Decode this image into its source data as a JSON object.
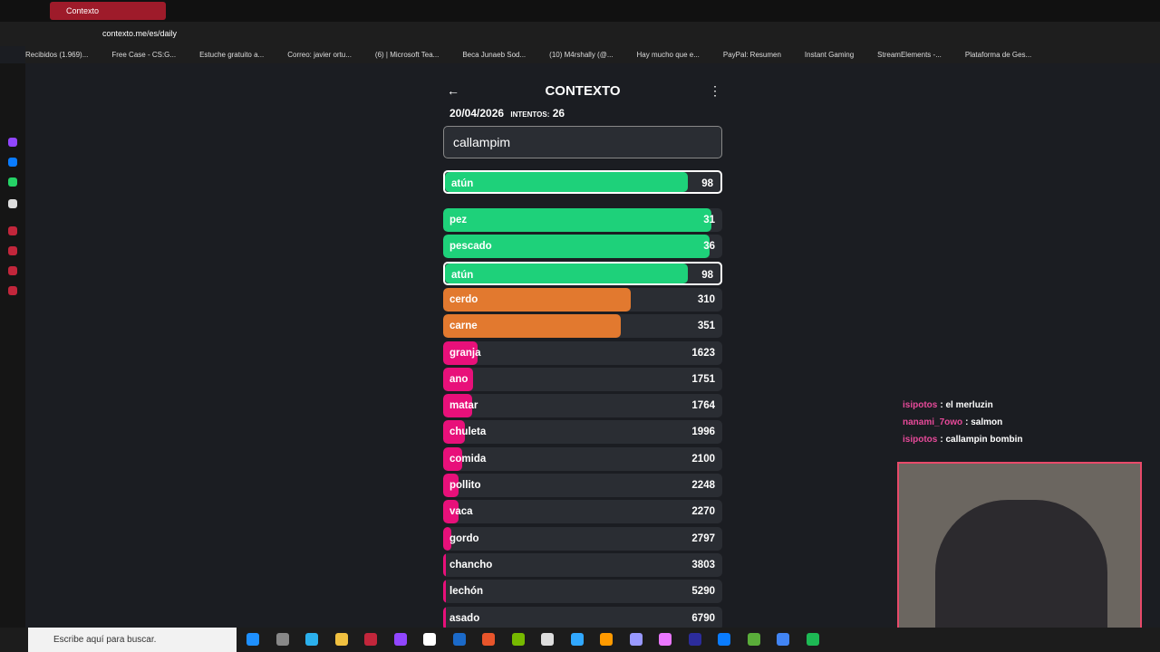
{
  "browser": {
    "tab_title": "Contexto",
    "url": "contexto.me/es/daily",
    "bookmarks": [
      "Recibidos (1.969)...",
      "Free Case - CS:G...",
      "Estuche gratuito a...",
      "Correo: javier ortu...",
      "(6) | Microsoft Tea...",
      "Beca Junaeb Sod...",
      "(10) M4rshally (@...",
      "Hay mucho que e...",
      "PayPal: Resumen",
      "Instant Gaming",
      "StreamElements -...",
      "Plataforma de Ges..."
    ]
  },
  "game": {
    "title": "CONTEXTO",
    "date": "20/04/2026",
    "attempts_label": "INTENTOS:",
    "attempts": 26,
    "input": "callampim",
    "last_guess": {
      "word": "atún",
      "rank": 98
    },
    "guesses": [
      {
        "word": "pez",
        "rank": 31
      },
      {
        "word": "pescado",
        "rank": 36
      },
      {
        "word": "atún",
        "rank": 98
      },
      {
        "word": "cerdo",
        "rank": 310
      },
      {
        "word": "carne",
        "rank": 351
      },
      {
        "word": "granja",
        "rank": 1623
      },
      {
        "word": "ano",
        "rank": 1751
      },
      {
        "word": "matar",
        "rank": 1764
      },
      {
        "word": "chuleta",
        "rank": 1996
      },
      {
        "word": "comida",
        "rank": 2100
      },
      {
        "word": "pollito",
        "rank": 2248
      },
      {
        "word": "vaca",
        "rank": 2270
      },
      {
        "word": "gordo",
        "rank": 2797
      },
      {
        "word": "chancho",
        "rank": 3803
      },
      {
        "word": "lechón",
        "rank": 5290
      },
      {
        "word": "asado",
        "rank": 6790
      }
    ]
  },
  "chat": [
    {
      "user": "isipotos",
      "text": ": el merluzin"
    },
    {
      "user": "nanami_7owo",
      "text": ": salmon"
    },
    {
      "user": "isipotos",
      "text": ": callampin bombin"
    }
  ],
  "taskbar": {
    "search": "Escribe aquí para buscar."
  }
}
